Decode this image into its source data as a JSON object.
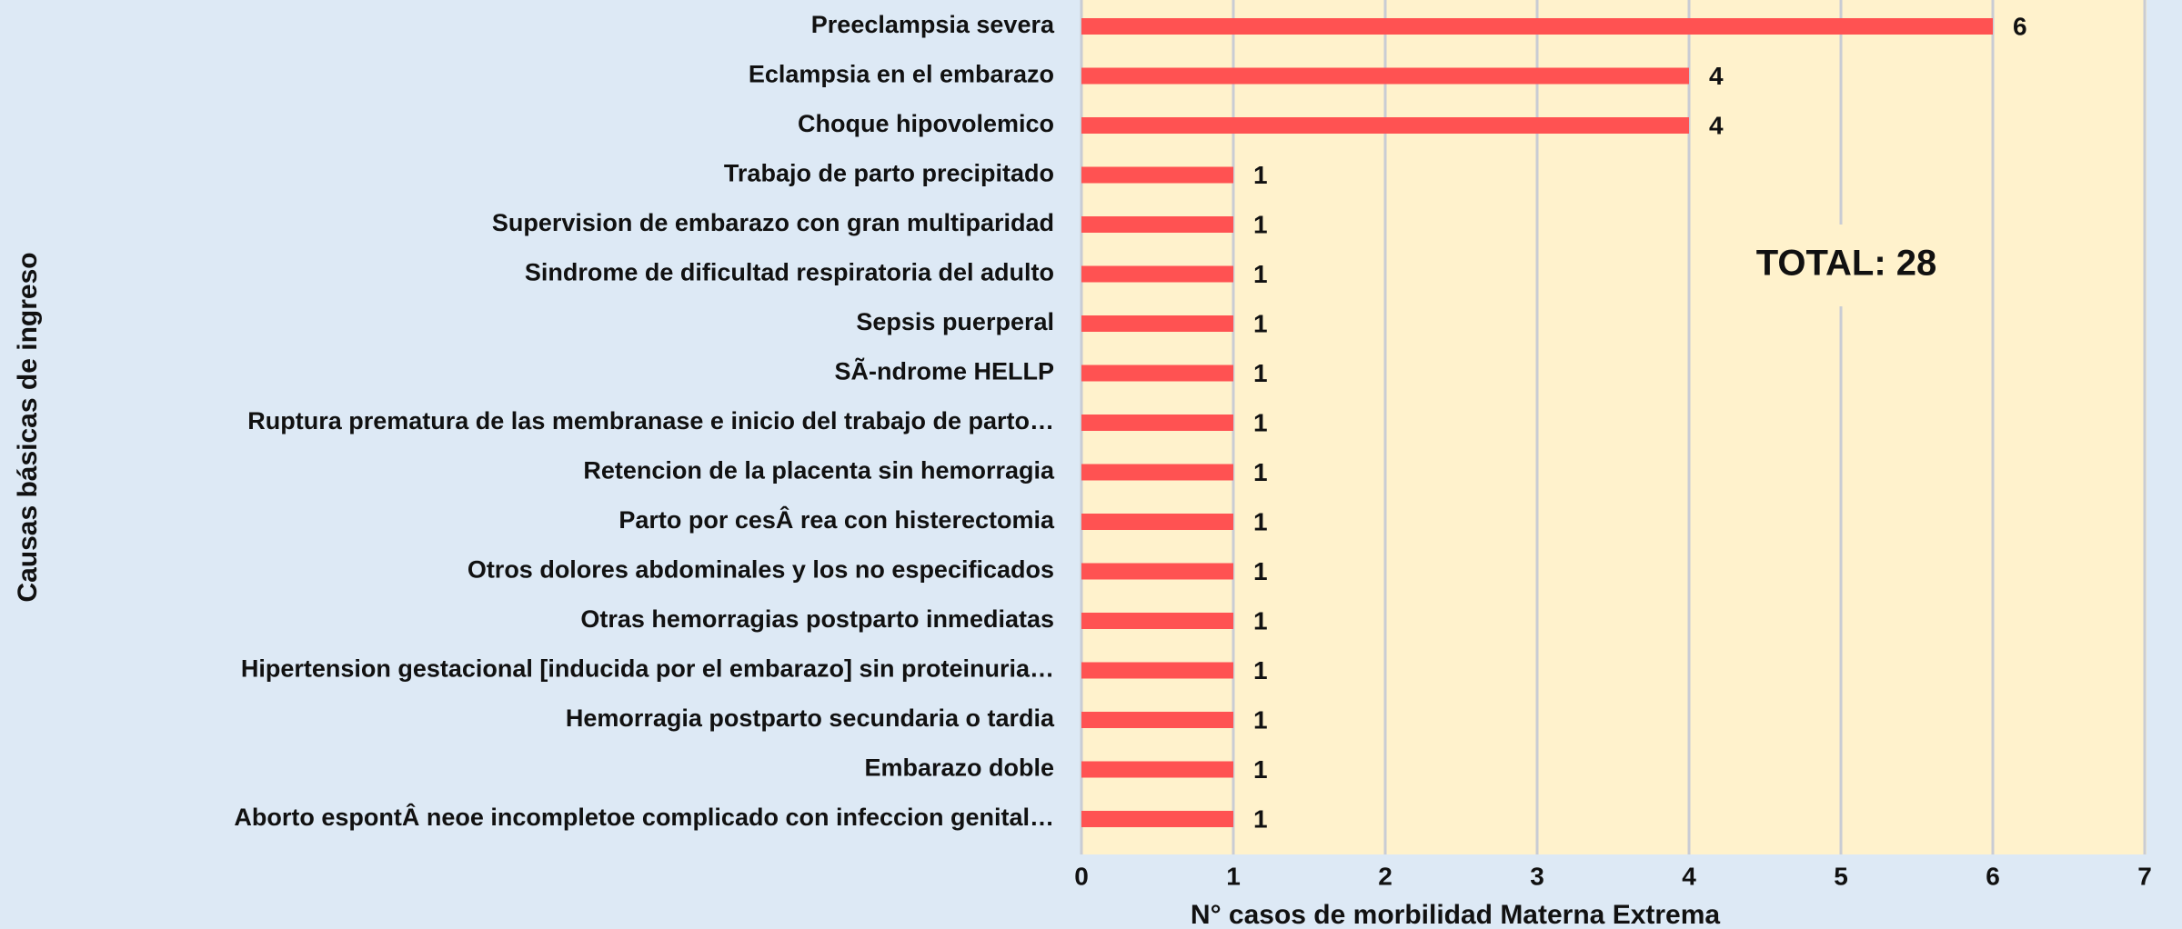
{
  "chart_data": {
    "type": "bar",
    "horizontal": true,
    "categories": [
      "Preeclampsia severa",
      "Eclampsia en el embarazo",
      "Choque hipovolemico",
      "Trabajo de parto precipitado",
      "Supervision de embarazo con gran multiparidad",
      "Sindrome de dificultad respiratoria del adulto",
      "Sepsis puerperal",
      "SÃ-ndrome HELLP",
      "Ruptura prematura de las membranase e inicio del trabajo de parto…",
      "Retencion de la placenta sin hemorragia",
      "Parto por cesÂ rea con histerectomia",
      "Otros dolores abdominales y los no especificados",
      "Otras hemorragias postparto inmediatas",
      "Hipertension gestacional [inducida por el embarazo] sin proteinuria…",
      "Hemorragia postparto secundaria o tardia",
      "Embarazo doble",
      "Aborto espontÂ neoe incompletoe complicado con infeccion genital…"
    ],
    "values": [
      6,
      4,
      4,
      1,
      1,
      1,
      1,
      1,
      1,
      1,
      1,
      1,
      1,
      1,
      1,
      1,
      1
    ],
    "color": "#ff5252",
    "xlim": [
      0,
      7
    ],
    "xticks": [
      0,
      1,
      2,
      3,
      4,
      5,
      6,
      7
    ],
    "grid": true,
    "x_label": "N° casos de morbilidad Materna Extrema",
    "y_label": "Causas básicas de ingreso",
    "annotation": "TOTAL: 28"
  }
}
